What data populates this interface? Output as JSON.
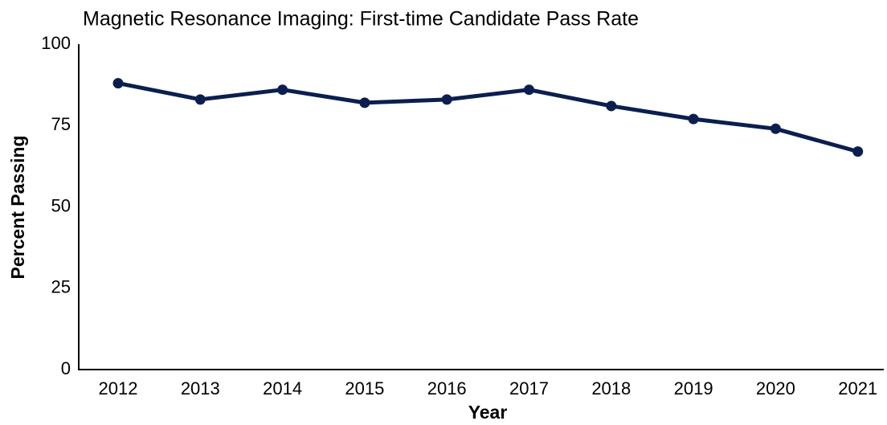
{
  "chart_data": {
    "type": "line",
    "title": "Magnetic Resonance Imaging: First-time Candidate Pass Rate",
    "x_label": "Year",
    "y_label": "Percent Passing",
    "categories": [
      "2012",
      "2013",
      "2014",
      "2015",
      "2016",
      "2017",
      "2018",
      "2019",
      "2020",
      "2021"
    ],
    "values": [
      88,
      83,
      86,
      82,
      83,
      86,
      81,
      77,
      74,
      67
    ],
    "color": "#0b1f4f",
    "ylim": [
      0,
      100
    ],
    "yticks": [
      0,
      25,
      50,
      75,
      100
    ],
    "grid": false
  }
}
